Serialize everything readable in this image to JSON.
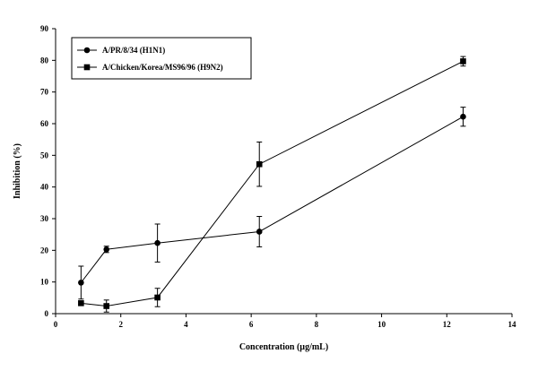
{
  "chart_data": {
    "type": "line",
    "xlabel": "Concentration (µg/mL)",
    "ylabel": "Inhibition (%)",
    "xlim": [
      0,
      14
    ],
    "ylim": [
      0,
      90
    ],
    "x_ticks": [
      0,
      2,
      4,
      6,
      8,
      10,
      12,
      14
    ],
    "y_ticks": [
      0,
      10,
      20,
      30,
      40,
      50,
      60,
      70,
      80,
      90
    ],
    "grid": false,
    "legend_position": "top-left",
    "series": [
      {
        "name": "A/PR/8/34 (H1N1)",
        "marker": "circle",
        "color": "#000000",
        "x": [
          0.78,
          1.56,
          3.125,
          6.25,
          12.5
        ],
        "y": [
          9.8,
          20.3,
          22.3,
          25.9,
          62.2
        ],
        "error": [
          5.2,
          1.0,
          6.0,
          4.8,
          3.0
        ]
      },
      {
        "name": "A/Chicken/Korea/MS96/96 (H9N2)",
        "marker": "square",
        "color": "#000000",
        "x": [
          0.78,
          1.56,
          3.125,
          6.25,
          12.5
        ],
        "y": [
          3.3,
          2.4,
          5.1,
          47.2,
          79.7
        ],
        "error": [
          0,
          1.9,
          2.9,
          7.0,
          1.5
        ]
      }
    ]
  }
}
